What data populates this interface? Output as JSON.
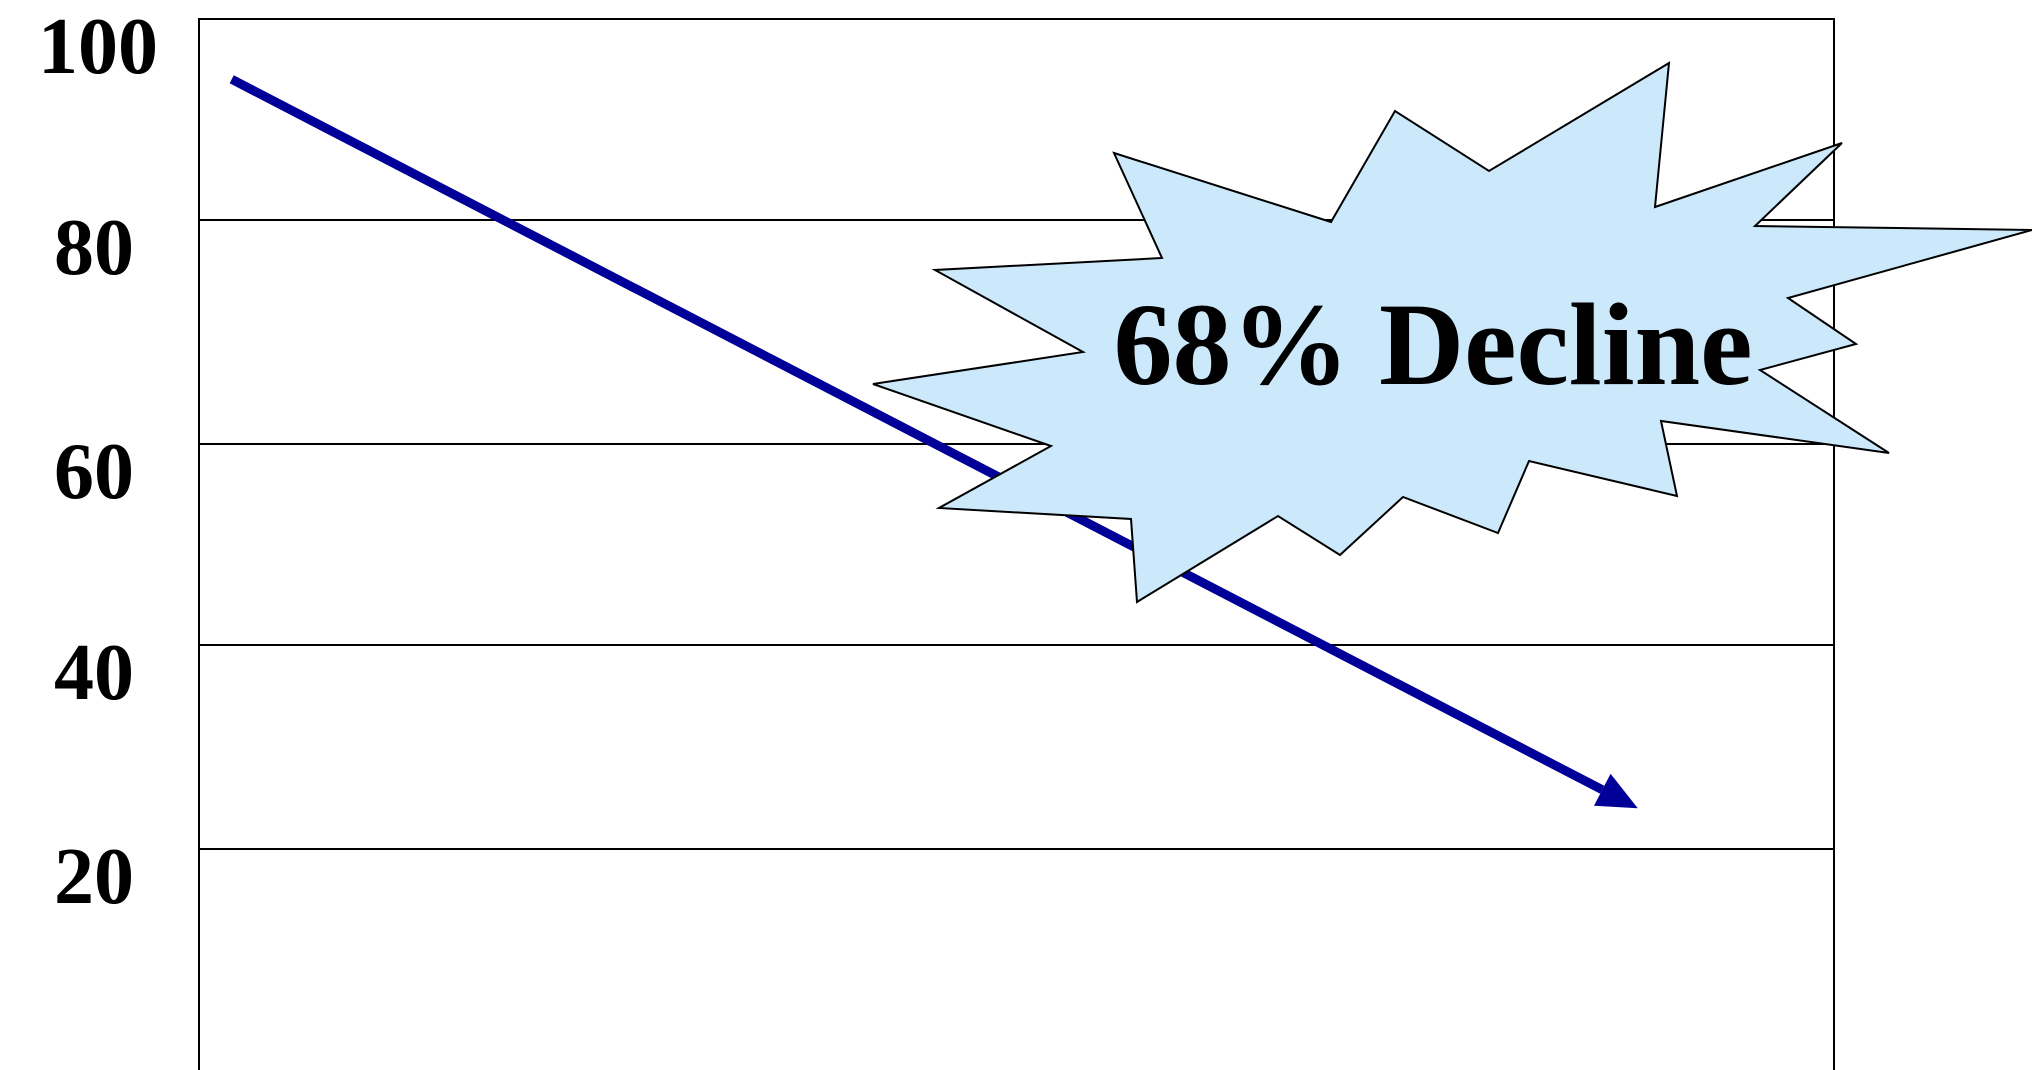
{
  "chart_data": {
    "type": "line",
    "title": "",
    "xlabel": "",
    "ylabel": "",
    "ylim": [
      0,
      100
    ],
    "yticks": [
      {
        "value": 100,
        "label": "100"
      },
      {
        "value": 80,
        "label": "80"
      },
      {
        "value": 60,
        "label": "60"
      },
      {
        "value": 40,
        "label": "40"
      },
      {
        "value": 20,
        "label": "20"
      }
    ],
    "grid": true,
    "legend": "none",
    "series": [
      {
        "points": [
          {
            "x": 0.02,
            "y": 94
          },
          {
            "x": 0.88,
            "y": 24
          }
        ],
        "arrowhead": true,
        "color": "#000099"
      }
    ],
    "annotations": [
      {
        "text": "68% Decline",
        "shape": "starburst",
        "fill": "#cce9fb",
        "stroke": "#000000"
      }
    ]
  },
  "colors": {
    "background": "#ffffff",
    "gridline": "#000000",
    "axis_text": "#000000",
    "trend_line": "#000099",
    "callout_fill": "#cce9fb"
  }
}
